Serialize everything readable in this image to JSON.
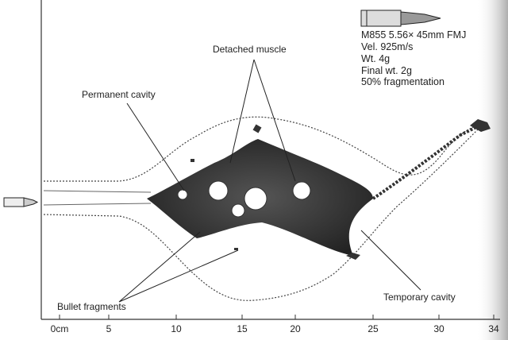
{
  "specs": [
    "M855 5.56× 45mm FMJ",
    "Vel. 925m/s",
    "Wt. 4g",
    "Final wt. 2g",
    "50% fragmentation"
  ],
  "labels": {
    "detached_muscle": "Detached muscle",
    "permanent_cavity": "Permanent cavity",
    "bullet_fragments": "Bullet fragments",
    "temporary_cavity": "Temporary cavity"
  },
  "axis": {
    "ticks": [
      "0cm",
      "5",
      "10",
      "15",
      "20",
      "25",
      "30",
      "34"
    ]
  }
}
